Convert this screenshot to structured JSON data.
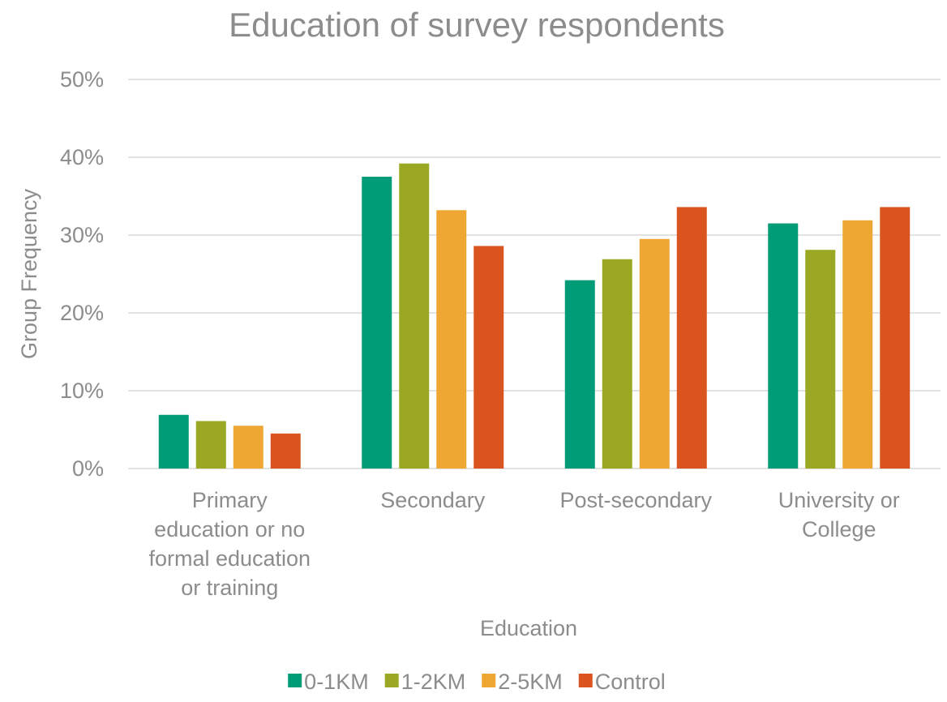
{
  "chart_data": {
    "type": "bar",
    "title": "Education of survey respondents",
    "xlabel": "Education",
    "ylabel": "Group Frequency",
    "ylim": [
      0,
      50
    ],
    "yticks": [
      "0%",
      "10%",
      "20%",
      "30%",
      "40%",
      "50%"
    ],
    "categories": [
      "Primary education or no formal education or training",
      "Secondary",
      "Post-secondary",
      "University or College"
    ],
    "category_label_lines": [
      [
        "Primary",
        "education or no",
        "formal education",
        "or training"
      ],
      [
        "Secondary"
      ],
      [
        "Post-secondary"
      ],
      [
        "University or",
        "College"
      ]
    ],
    "series": [
      {
        "name": "0-1KM",
        "color": "#009B77",
        "values": [
          6.9,
          37.5,
          24.2,
          31.5
        ]
      },
      {
        "name": "1-2KM",
        "color": "#9BA823",
        "values": [
          6.1,
          39.2,
          26.9,
          28.1
        ]
      },
      {
        "name": "2-5KM",
        "color": "#EDA732",
        "values": [
          5.5,
          33.2,
          29.5,
          31.9
        ]
      },
      {
        "name": "Control",
        "color": "#DB5420",
        "values": [
          4.5,
          28.6,
          33.6,
          33.6
        ]
      }
    ],
    "grid": true,
    "gridline_color": "#d9d9d9",
    "legend_position": "bottom"
  }
}
